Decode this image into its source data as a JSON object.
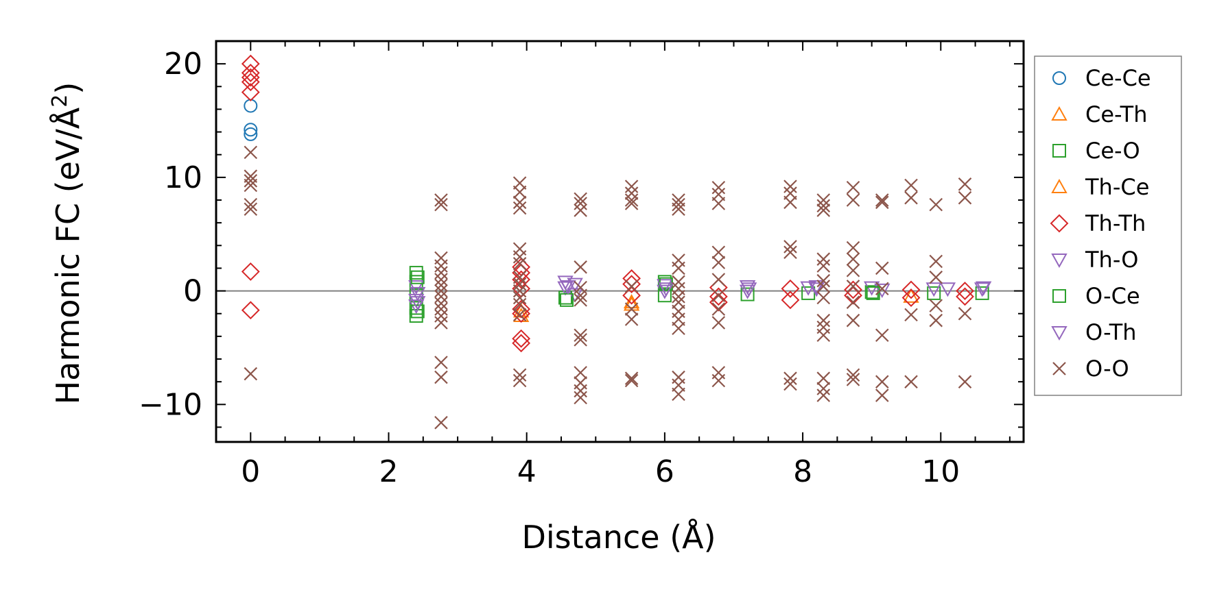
{
  "chart_data": {
    "type": "scatter",
    "title": "",
    "xlabel": "Distance (Å)",
    "ylabel_main": "Harmonic FC (eV/Å",
    "ylabel_sup": "2",
    "ylabel_tail": ")",
    "xlim": [
      -0.5,
      11.2
    ],
    "ylim": [
      -13.3,
      22.0
    ],
    "xticks": [
      0,
      2,
      4,
      6,
      8,
      10
    ],
    "xtick_labels": [
      "0",
      "2",
      "4",
      "6",
      "8",
      "10"
    ],
    "yticks": [
      -10,
      0,
      10,
      20
    ],
    "ytick_labels": [
      "−10",
      "0",
      "10",
      "20"
    ],
    "zero_line": true,
    "legend_position": "outside-right",
    "series": [
      {
        "name": "Ce-Ce",
        "marker": "circle",
        "color": "#1f77b4",
        "points": [
          [
            0,
            16.3
          ],
          [
            0,
            14.2
          ],
          [
            0,
            13.8
          ]
        ]
      },
      {
        "name": "Ce-Th",
        "marker": "triangle-up",
        "color": "#ff7f0e",
        "points": [
          [
            3.92,
            -1.8
          ],
          [
            5.52,
            -1.0
          ]
        ]
      },
      {
        "name": "Ce-O",
        "marker": "square",
        "color": "#2ca02c",
        "points": [
          [
            2.4,
            1.6
          ],
          [
            2.4,
            0.8
          ],
          [
            2.4,
            -0.4
          ],
          [
            2.4,
            -1.5
          ],
          [
            2.4,
            -2.2
          ],
          [
            4.56,
            -0.6
          ],
          [
            6.0,
            0.8
          ],
          [
            6.0,
            -0.4
          ],
          [
            7.2,
            -0.3
          ],
          [
            8.08,
            -0.2
          ],
          [
            9.0,
            -0.1
          ],
          [
            9.9,
            -0.2
          ],
          [
            10.6,
            -0.2
          ]
        ]
      },
      {
        "name": "Th-Ce",
        "marker": "triangle-up",
        "color": "#ff7f0e",
        "points": [
          [
            3.92,
            -2.2
          ],
          [
            5.52,
            -1.2
          ],
          [
            9.57,
            -0.5
          ]
        ]
      },
      {
        "name": "Th-Th",
        "marker": "diamond",
        "color": "#d62728",
        "points": [
          [
            0,
            20.0
          ],
          [
            0,
            19.2
          ],
          [
            0,
            18.8
          ],
          [
            0,
            18.4
          ],
          [
            0,
            17.5
          ],
          [
            0,
            1.7
          ],
          [
            0,
            -1.7
          ],
          [
            3.92,
            2.1
          ],
          [
            3.92,
            1.6
          ],
          [
            3.92,
            1.0
          ],
          [
            3.92,
            0.2
          ],
          [
            3.92,
            -1.6
          ],
          [
            3.92,
            -2.0
          ],
          [
            3.92,
            -4.2
          ],
          [
            3.92,
            -4.6
          ],
          [
            5.52,
            1.1
          ],
          [
            5.52,
            0.6
          ],
          [
            5.52,
            -0.4
          ],
          [
            6.78,
            0.3
          ],
          [
            6.78,
            -0.5
          ],
          [
            6.78,
            -1.0
          ],
          [
            7.82,
            0.2
          ],
          [
            7.82,
            -0.8
          ],
          [
            8.73,
            0.1
          ],
          [
            8.73,
            -0.4
          ],
          [
            9.57,
            0.1
          ],
          [
            9.57,
            -0.6
          ],
          [
            10.35,
            0.0
          ],
          [
            10.35,
            -0.5
          ]
        ]
      },
      {
        "name": "Th-O",
        "marker": "triangle-down",
        "color": "#9467bd",
        "points": [
          [
            2.4,
            0.4
          ],
          [
            2.4,
            -0.8
          ],
          [
            2.4,
            -1.3
          ],
          [
            4.56,
            0.8
          ],
          [
            4.56,
            0.3
          ],
          [
            4.7,
            0.6
          ],
          [
            4.7,
            -0.3
          ],
          [
            6.0,
            0.5
          ],
          [
            6.0,
            0.0
          ],
          [
            7.2,
            0.4
          ],
          [
            7.2,
            0.0
          ],
          [
            8.08,
            0.3
          ],
          [
            8.2,
            0.2
          ],
          [
            9.0,
            0.3
          ],
          [
            9.15,
            0.1
          ],
          [
            9.9,
            0.2
          ],
          [
            10.1,
            0.2
          ],
          [
            10.6,
            0.2
          ]
        ]
      },
      {
        "name": "O-Ce",
        "marker": "square",
        "color": "#2ca02c",
        "points": [
          [
            2.42,
            1.2
          ],
          [
            2.42,
            -1.8
          ],
          [
            4.58,
            -0.8
          ],
          [
            6.02,
            0.6
          ],
          [
            9.02,
            -0.2
          ]
        ]
      },
      {
        "name": "O-Th",
        "marker": "triangle-down",
        "color": "#9467bd",
        "points": [
          [
            2.42,
            -0.2
          ],
          [
            2.42,
            -1.0
          ],
          [
            4.6,
            0.4
          ],
          [
            6.02,
            0.2
          ],
          [
            7.22,
            0.2
          ],
          [
            8.2,
            0.4
          ],
          [
            10.62,
            0.3
          ]
        ]
      },
      {
        "name": "O-O",
        "marker": "x",
        "color": "#8c564b",
        "points": [
          [
            0,
            12.2
          ],
          [
            0,
            10.1
          ],
          [
            0,
            9.7
          ],
          [
            0,
            9.3
          ],
          [
            0,
            7.6
          ],
          [
            0,
            7.2
          ],
          [
            0,
            -7.3
          ],
          [
            2.76,
            8.0
          ],
          [
            2.76,
            7.6
          ],
          [
            2.76,
            2.9
          ],
          [
            2.76,
            2.2
          ],
          [
            2.76,
            1.6
          ],
          [
            2.76,
            1.0
          ],
          [
            2.76,
            0.5
          ],
          [
            2.76,
            0.0
          ],
          [
            2.76,
            -0.5
          ],
          [
            2.76,
            -1.1
          ],
          [
            2.76,
            -1.6
          ],
          [
            2.76,
            -2.2
          ],
          [
            2.76,
            -2.8
          ],
          [
            2.76,
            -6.3
          ],
          [
            2.76,
            -7.6
          ],
          [
            2.76,
            -11.6
          ],
          [
            3.9,
            9.5
          ],
          [
            3.9,
            8.7
          ],
          [
            3.9,
            7.8
          ],
          [
            3.9,
            7.3
          ],
          [
            3.9,
            3.7
          ],
          [
            3.9,
            3.0
          ],
          [
            3.9,
            2.4
          ],
          [
            3.9,
            1.2
          ],
          [
            3.9,
            0.6
          ],
          [
            3.9,
            0.0
          ],
          [
            3.9,
            -0.6
          ],
          [
            3.9,
            -1.2
          ],
          [
            3.9,
            -2.1
          ],
          [
            3.9,
            -7.4
          ],
          [
            3.9,
            -7.9
          ],
          [
            4.78,
            8.1
          ],
          [
            4.78,
            7.7
          ],
          [
            4.78,
            7.1
          ],
          [
            4.78,
            2.1
          ],
          [
            4.78,
            0.3
          ],
          [
            4.78,
            -0.4
          ],
          [
            4.78,
            -0.8
          ],
          [
            4.78,
            -3.9
          ],
          [
            4.78,
            -4.3
          ],
          [
            4.78,
            -7.2
          ],
          [
            4.78,
            -8.1
          ],
          [
            4.78,
            -8.8
          ],
          [
            4.78,
            -9.4
          ],
          [
            5.52,
            9.2
          ],
          [
            5.52,
            8.6
          ],
          [
            5.52,
            8.0
          ],
          [
            5.52,
            7.7
          ],
          [
            5.52,
            0.4
          ],
          [
            5.52,
            -1.6
          ],
          [
            5.52,
            -2.5
          ],
          [
            5.52,
            -7.7
          ],
          [
            5.52,
            -7.9
          ],
          [
            6.2,
            8.0
          ],
          [
            6.2,
            7.6
          ],
          [
            6.2,
            7.2
          ],
          [
            6.2,
            2.7
          ],
          [
            6.2,
            2.0
          ],
          [
            6.2,
            0.8
          ],
          [
            6.2,
            0.2
          ],
          [
            6.2,
            -0.5
          ],
          [
            6.2,
            -1.0
          ],
          [
            6.2,
            -1.8
          ],
          [
            6.2,
            -2.5
          ],
          [
            6.2,
            -3.3
          ],
          [
            6.2,
            -7.6
          ],
          [
            6.2,
            -8.3
          ],
          [
            6.2,
            -9.1
          ],
          [
            6.78,
            9.1
          ],
          [
            6.78,
            8.5
          ],
          [
            6.78,
            7.7
          ],
          [
            6.78,
            3.4
          ],
          [
            6.78,
            2.5
          ],
          [
            6.78,
            1.0
          ],
          [
            6.78,
            -0.4
          ],
          [
            6.78,
            -1.6
          ],
          [
            6.78,
            -2.8
          ],
          [
            6.78,
            -7.2
          ],
          [
            6.78,
            -7.9
          ],
          [
            7.82,
            9.2
          ],
          [
            7.82,
            8.6
          ],
          [
            7.82,
            7.8
          ],
          [
            7.82,
            3.9
          ],
          [
            7.82,
            3.4
          ],
          [
            7.82,
            -7.7
          ],
          [
            7.82,
            -8.2
          ],
          [
            8.3,
            8.0
          ],
          [
            8.3,
            7.5
          ],
          [
            8.3,
            7.1
          ],
          [
            8.3,
            2.8
          ],
          [
            8.3,
            2.2
          ],
          [
            8.3,
            0.9
          ],
          [
            8.3,
            0.4
          ],
          [
            8.3,
            -0.6
          ],
          [
            8.3,
            -2.6
          ],
          [
            8.3,
            -3.2
          ],
          [
            8.3,
            -3.9
          ],
          [
            8.3,
            -7.7
          ],
          [
            8.3,
            -8.6
          ],
          [
            8.3,
            -9.2
          ],
          [
            8.73,
            9.1
          ],
          [
            8.73,
            8.0
          ],
          [
            8.73,
            3.8
          ],
          [
            8.73,
            2.8
          ],
          [
            8.73,
            1.8
          ],
          [
            8.73,
            0.4
          ],
          [
            8.73,
            -1.0
          ],
          [
            8.73,
            -2.6
          ],
          [
            8.73,
            -7.4
          ],
          [
            8.73,
            -7.8
          ],
          [
            9.15,
            8.0
          ],
          [
            9.15,
            7.8
          ],
          [
            9.15,
            2.0
          ],
          [
            9.15,
            0.2
          ],
          [
            9.15,
            -3.9
          ],
          [
            9.15,
            -8.0
          ],
          [
            9.15,
            -9.2
          ],
          [
            9.57,
            9.3
          ],
          [
            9.57,
            8.2
          ],
          [
            9.57,
            -2.1
          ],
          [
            9.57,
            -8.0
          ],
          [
            9.93,
            7.6
          ],
          [
            9.93,
            2.6
          ],
          [
            9.93,
            1.2
          ],
          [
            9.93,
            -1.3
          ],
          [
            9.93,
            -2.6
          ],
          [
            10.35,
            9.4
          ],
          [
            10.35,
            8.2
          ],
          [
            10.35,
            -2.0
          ],
          [
            10.35,
            -8.0
          ]
        ]
      }
    ]
  }
}
